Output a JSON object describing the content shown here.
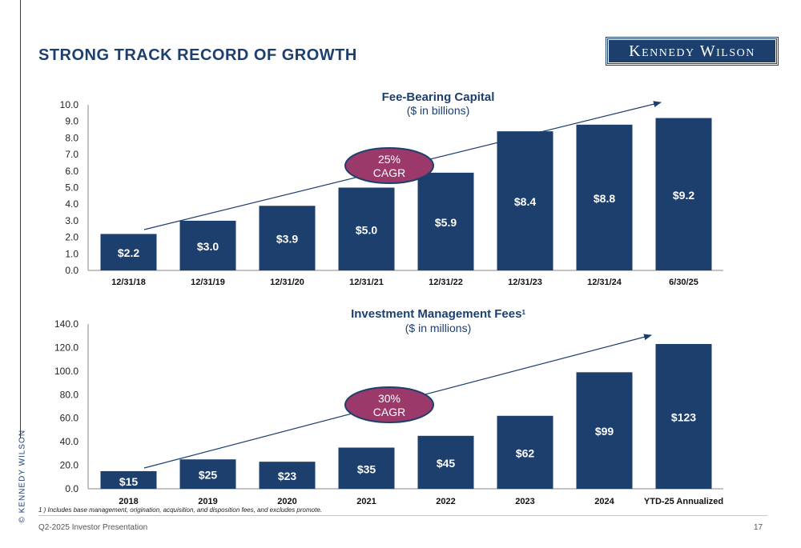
{
  "side_label": "© KENNEDY WILSON",
  "page_title": "STRONG TRACK RECORD OF GROWTH",
  "logo_text": "Kennedy Wilson",
  "colors": {
    "bar": "#1c3f6e",
    "cagr_fill": "#9b3a6a",
    "cagr_border": "#1c3f6e",
    "text": "#1c3f6e"
  },
  "chart_data": [
    {
      "type": "bar",
      "title": "Fee-Bearing Capital",
      "subtitle": "($ in billions)",
      "categories": [
        "12/31/18",
        "12/31/19",
        "12/31/20",
        "12/31/21",
        "12/31/22",
        "12/31/23",
        "12/31/24",
        "6/30/25"
      ],
      "values": [
        2.2,
        3.0,
        3.9,
        5.0,
        5.9,
        8.4,
        8.8,
        9.2
      ],
      "data_labels": [
        "$2.2",
        "$3.0",
        "$3.9",
        "$5.0",
        "$5.9",
        "$8.4",
        "$8.8",
        "$9.2"
      ],
      "yticks": [
        "0.0",
        "1.0",
        "2.0",
        "3.0",
        "4.0",
        "5.0",
        "6.0",
        "7.0",
        "8.0",
        "9.0",
        "10.0"
      ],
      "ylim": [
        0,
        10
      ],
      "annotation": {
        "line1": "25%",
        "line2": "CAGR"
      },
      "grid": false
    },
    {
      "type": "bar",
      "title": "Investment Management Fees",
      "title_superscript": "1",
      "subtitle": "($ in millions)",
      "categories": [
        "2018",
        "2019",
        "2020",
        "2021",
        "2022",
        "2023",
        "2024",
        "YTD-25 Annualized"
      ],
      "values": [
        15,
        25,
        23,
        35,
        45,
        62,
        99,
        123
      ],
      "data_labels": [
        "$15",
        "$25",
        "$23",
        "$35",
        "$45",
        "$62",
        "$99",
        "$123"
      ],
      "yticks": [
        "0.0",
        "20.0",
        "40.0",
        "60.0",
        "80.0",
        "100.0",
        "120.0",
        "140.0"
      ],
      "ylim": [
        0,
        140
      ],
      "annotation": {
        "line1": "30%",
        "line2": "CAGR"
      },
      "grid": false
    }
  ],
  "footnote": "1 ) Includes base management, origination, acquisition, and disposition fees, and excludes promote.",
  "footer": {
    "left": "Q2-2025 Investor Presentation",
    "page_number": "17"
  }
}
